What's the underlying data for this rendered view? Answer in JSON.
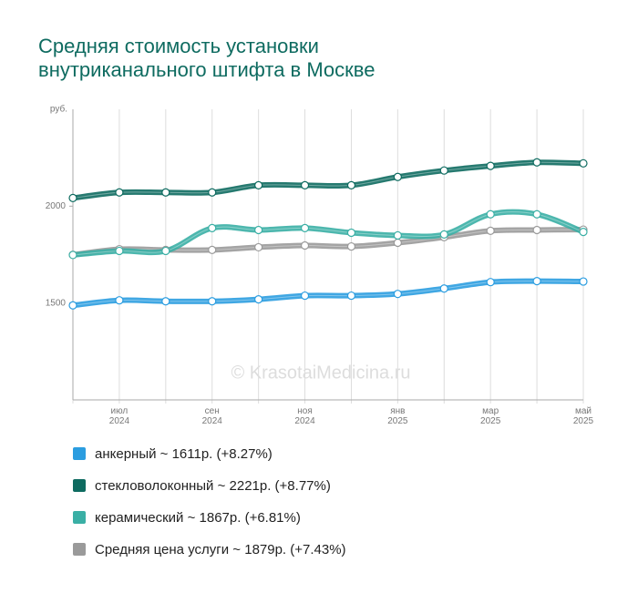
{
  "chart_data": {
    "type": "line",
    "title": "Средняя стоимость установки внутриканального штифта в Москве",
    "y_label": "руб.",
    "watermark": "© KrasotaiMedicina.ru",
    "categories": [
      null,
      "июл 2024",
      null,
      "сен 2024",
      null,
      "ноя 2024",
      null,
      "янв 2025",
      null,
      "мар 2025",
      null,
      "май 2025"
    ],
    "ylim": [
      1000,
      2500
    ],
    "yticks": [
      1500,
      2000
    ],
    "grid": true,
    "legend": "bottom",
    "series": [
      {
        "name": "анкерный ~ 1611р. (+8.27%)",
        "color": "#2b9de0",
        "values": [
          1488,
          1514,
          1509,
          1509,
          1519,
          1538,
          1538,
          1547,
          1575,
          1608,
          1613,
          1611
        ]
      },
      {
        "name": "стекловолоконный ~ 2221р. (+8.77%)",
        "color": "#0e6b60",
        "values": [
          2042,
          2071,
          2071,
          2071,
          2108,
          2108,
          2108,
          2151,
          2184,
          2208,
          2226,
          2221
        ]
      },
      {
        "name": "керамический ~ 1867р. (+6.81%)",
        "color": "#3aafa5",
        "values": [
          1748,
          1769,
          1769,
          1887,
          1877,
          1887,
          1863,
          1849,
          1854,
          1958,
          1958,
          1867
        ]
      },
      {
        "name": "Средняя цена услуги ~ 1879р. (+7.43%)",
        "color": "#9a9a9a",
        "values": [
          1749,
          1778,
          1774,
          1774,
          1788,
          1797,
          1792,
          1811,
          1840,
          1873,
          1877,
          1879
        ]
      }
    ]
  }
}
